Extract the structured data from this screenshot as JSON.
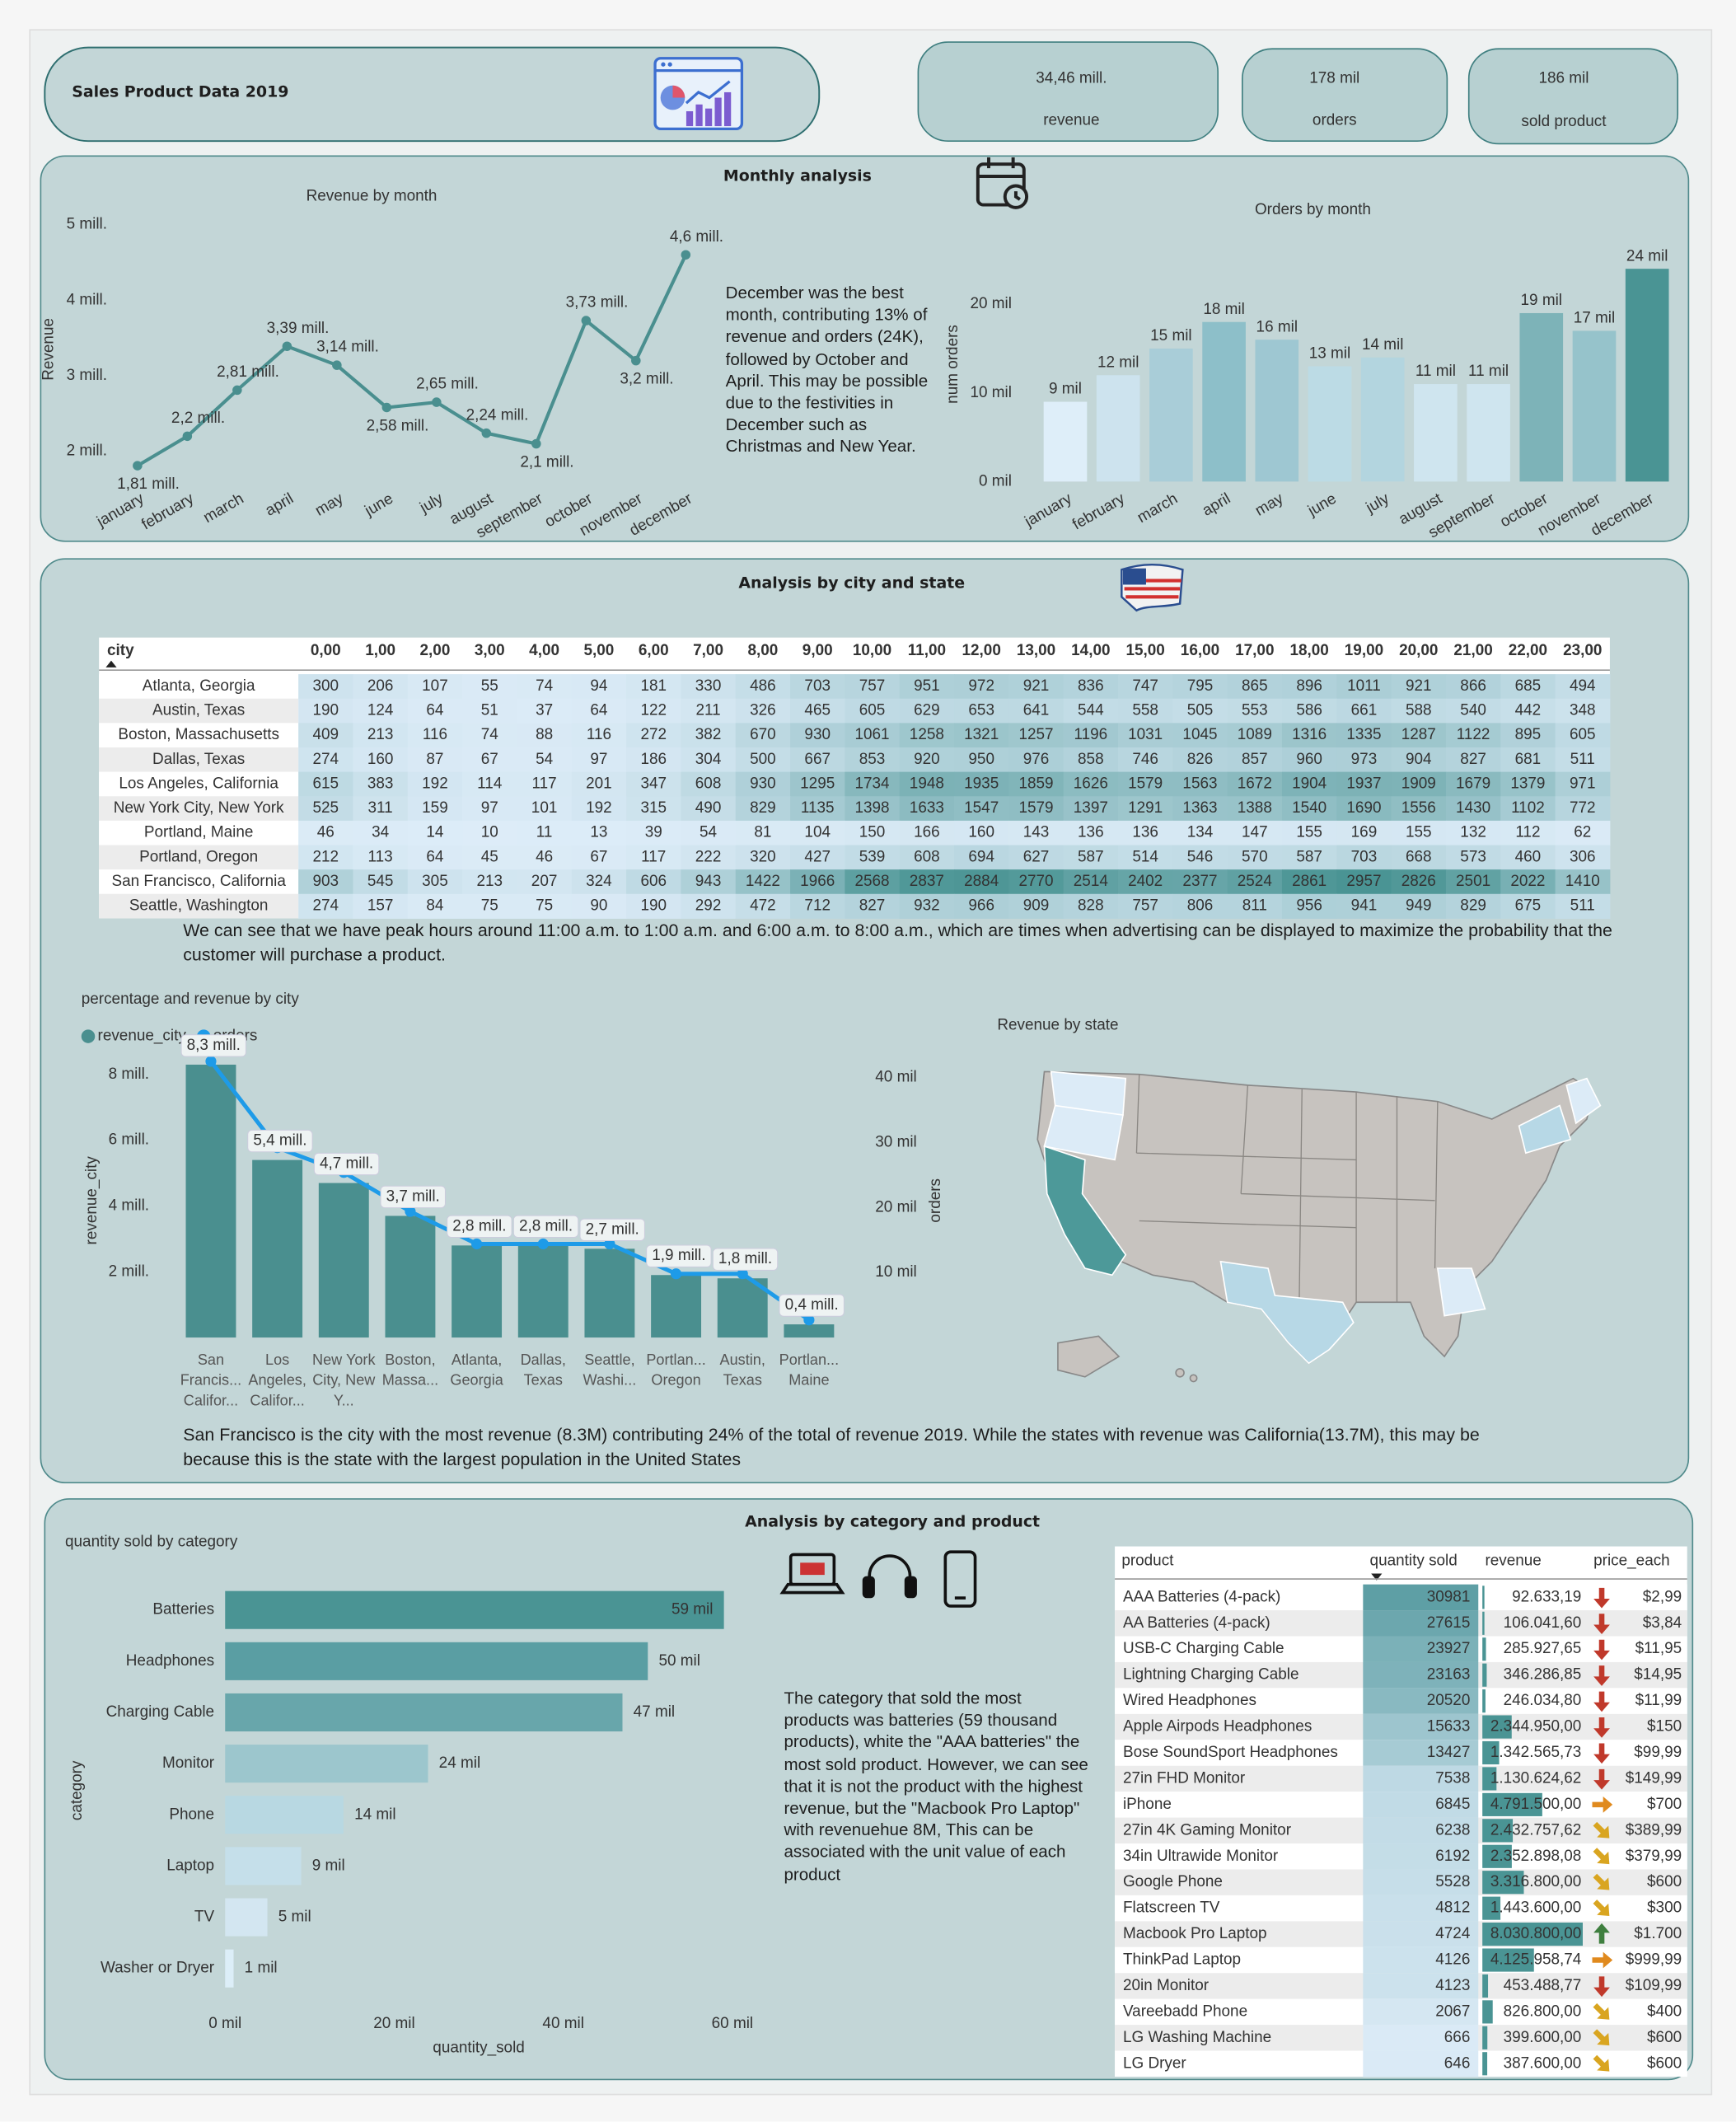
{
  "header": {
    "title": "Sales Product Data 2019"
  },
  "kpis": [
    {
      "value": "34,46 mill.",
      "label": "revenue"
    },
    {
      "value": "178 mil",
      "label": "orders"
    },
    {
      "value": "186 mil",
      "label": "sold product"
    }
  ],
  "sections": [
    "Monthly analysis",
    "Analysis by city and state",
    "Analysis by category and product"
  ],
  "notes": {
    "monthly": "December was the best month, contributing 13% of revenue and orders (24K), followed by October and April. This may be possible due to the festivities in December such as Christmas and New Year.",
    "hours": "We can see that we have peak hours around 11:00 a.m. to 1:00 a.m. and 6:00 a.m. to 8:00 a.m., which are times when advertising can be displayed to maximize the probability that the customer will purchase a product.",
    "city": "San Francisco is the city with the most revenue (8.3M) contributing 24% of the total of revenue 2019.  While the states with revenue was California(13.7M), this may be because this is the state with the largest population in the United States",
    "category": "The category that sold the most products was batteries (59 thousand products), white the \"AAA batteries\" the most sold product. However, we can see that it is not the product with the highest revenue, but the \"Macbook Pro Laptop\" with revenuehue 8M, This can be associated with the unit value of each product"
  },
  "chart_data": [
    {
      "type": "line",
      "title": "Revenue by month",
      "y_label": "Revenue",
      "color": "#4a8f8f",
      "categories": [
        "january",
        "february",
        "march",
        "april",
        "may",
        "june",
        "july",
        "august",
        "september",
        "october",
        "november",
        "december"
      ],
      "values": [
        1.81,
        2.2,
        2.81,
        3.39,
        3.14,
        2.58,
        2.65,
        2.24,
        2.1,
        3.73,
        3.2,
        4.6
      ],
      "value_labels": [
        "1,81 mill.",
        "2,2 mill.",
        "2,81 mill.",
        "3,39 mill.",
        "3,14 mill.",
        "2,58 mill.",
        "2,65 mill.",
        "2,24 mill.",
        "2,1 mill.",
        "3,73 mill.",
        "3,2 mill.",
        "4,6 mill."
      ],
      "ylim": [
        1.6,
        5.1
      ],
      "yticks": [
        {
          "value": 2,
          "label": "2 mill."
        },
        {
          "value": 3,
          "label": "3 mill."
        },
        {
          "value": 4,
          "label": "4 mill."
        },
        {
          "value": 5,
          "label": "5 mill."
        }
      ],
      "grid": false
    },
    {
      "type": "bar",
      "title": "Orders by month",
      "y_label": "num orders",
      "categories": [
        "january",
        "february",
        "march",
        "april",
        "may",
        "june",
        "july",
        "august",
        "september",
        "october",
        "november",
        "december"
      ],
      "values": [
        9,
        12,
        15,
        18,
        16,
        13,
        14,
        11,
        11,
        19,
        17,
        24
      ],
      "value_labels": [
        "9 mil",
        "12 mil",
        "15 mil",
        "18 mil",
        "16 mil",
        "13 mil",
        "14 mil",
        "11 mil",
        "11 mil",
        "19 mil",
        "17 mil",
        "24 mil"
      ],
      "colors": [
        "#deeef9",
        "#cde3ee",
        "#a9cdd8",
        "#8dbfc9",
        "#9ec7d2",
        "#bcdbe5",
        "#b3d5df",
        "#cfe5ef",
        "#cfe5ef",
        "#7db3b8",
        "#96c3cb",
        "#4a9494"
      ],
      "ylim": [
        0,
        28
      ],
      "yticks": [
        {
          "value": 0,
          "label": "0 mil"
        },
        {
          "value": 10,
          "label": "10 mil"
        },
        {
          "value": 20,
          "label": "20 mil"
        }
      ],
      "grid": false
    },
    {
      "type": "bar-line",
      "title": "percentage and revenue by city",
      "y_label": "revenue_city",
      "y2_label": "orders",
      "categories": [
        "San Francis... Califor...",
        "Los Angeles, Califor...",
        "New York City, New Y...",
        "Boston, Massa...",
        "Atlanta, Georgia",
        "Dallas, Texas",
        "Seattle, Washi...",
        "Portlan... Oregon",
        "Austin, Texas",
        "Portlan... Maine"
      ],
      "series": [
        {
          "name": "revenue_city",
          "color": "#4a8f8f",
          "values": [
            8.3,
            5.4,
            4.7,
            3.7,
            2.8,
            2.8,
            2.7,
            1.9,
            1.8,
            0.4
          ],
          "value_labels": [
            "8,3 mill.",
            "5,4 mill.",
            "4,7 mill.",
            "3,7 mill.",
            "2,8 mill.",
            "2,8 mill.",
            "2,7 mill.",
            "1,9 mill.",
            "1,8 mill.",
            "0,4 mill."
          ]
        },
        {
          "name": "orders",
          "color": "#1e9be8",
          "axis": "y2",
          "values": [
            42.5,
            29.2,
            25.4,
            19.4,
            14.4,
            14.4,
            14.4,
            9.8,
            9.8,
            2.7
          ]
        }
      ],
      "ylim": [
        0,
        8.5
      ],
      "yticks": [
        {
          "value": 2,
          "label": "2 mill."
        },
        {
          "value": 4,
          "label": "4 mill."
        },
        {
          "value": 6,
          "label": "6 mill."
        },
        {
          "value": 8,
          "label": "8 mill."
        }
      ],
      "y2lim": [
        0,
        43
      ],
      "y2ticks": [
        {
          "value": 10,
          "label": "10 mil"
        },
        {
          "value": 20,
          "label": "20 mil"
        },
        {
          "value": 30,
          "label": "30 mil"
        },
        {
          "value": 40,
          "label": "40 mil"
        }
      ],
      "legend": "top-left",
      "grid": false
    },
    {
      "type": "hbar",
      "title": "quantity sold by category",
      "x_label": "quantity_sold",
      "y_label": "category",
      "categories": [
        "Batteries",
        "Headphones",
        "Charging Cable",
        "Monitor",
        "Phone",
        "Laptop",
        "TV",
        "Washer or Dryer"
      ],
      "values": [
        59,
        50,
        47,
        24,
        14,
        9,
        5,
        1
      ],
      "value_labels": [
        "59 mil",
        "50 mil",
        "47 mil",
        "24 mil",
        "14 mil",
        "9 mil",
        "5 mil",
        "1 mil"
      ],
      "colors": [
        "#4a9494",
        "#5a9ea3",
        "#68a6ab",
        "#9cc6cd",
        "#b8d8e2",
        "#c5dfea",
        "#d3e6f1",
        "#dceef8"
      ],
      "xlim": [
        0,
        60
      ],
      "xticks": [
        {
          "value": 0,
          "label": "0 mil"
        },
        {
          "value": 20,
          "label": "20 mil"
        },
        {
          "value": 40,
          "label": "40 mil"
        },
        {
          "value": 60,
          "label": "60 mil"
        }
      ],
      "grid": false
    }
  ],
  "map_title": "Revenue by state",
  "hour_table": {
    "header": "city",
    "color_scale": [
      "#ddecf8",
      "#4a9494"
    ],
    "hours": [
      "0,00",
      "1,00",
      "2,00",
      "3,00",
      "4,00",
      "5,00",
      "6,00",
      "7,00",
      "8,00",
      "9,00",
      "10,00",
      "11,00",
      "12,00",
      "13,00",
      "14,00",
      "15,00",
      "16,00",
      "17,00",
      "18,00",
      "19,00",
      "20,00",
      "21,00",
      "22,00",
      "23,00"
    ],
    "cities": [
      "Atlanta, Georgia",
      "Austin, Texas",
      "Boston, Massachusetts",
      "Dallas, Texas",
      "Los Angeles, California",
      "New York City, New York",
      "Portland, Maine",
      "Portland, Oregon",
      "San Francisco, California",
      "Seattle, Washington"
    ],
    "values": [
      [
        300,
        206,
        107,
        55,
        74,
        94,
        181,
        330,
        486,
        703,
        757,
        951,
        972,
        921,
        836,
        747,
        795,
        865,
        896,
        1011,
        921,
        866,
        685,
        494
      ],
      [
        190,
        124,
        64,
        51,
        37,
        64,
        122,
        211,
        326,
        465,
        605,
        629,
        653,
        641,
        544,
        558,
        505,
        553,
        586,
        661,
        588,
        540,
        442,
        348
      ],
      [
        409,
        213,
        116,
        74,
        88,
        116,
        272,
        382,
        670,
        930,
        1061,
        1258,
        1321,
        1257,
        1196,
        1031,
        1045,
        1089,
        1316,
        1335,
        1287,
        1122,
        895,
        605
      ],
      [
        274,
        160,
        87,
        67,
        54,
        97,
        186,
        304,
        500,
        667,
        853,
        920,
        950,
        976,
        858,
        746,
        826,
        857,
        960,
        973,
        904,
        827,
        681,
        511
      ],
      [
        615,
        383,
        192,
        114,
        117,
        201,
        347,
        608,
        930,
        1295,
        1734,
        1948,
        1935,
        1859,
        1626,
        1579,
        1563,
        1672,
        1904,
        1937,
        1909,
        1679,
        1379,
        971
      ],
      [
        525,
        311,
        159,
        97,
        101,
        192,
        315,
        490,
        829,
        1135,
        1398,
        1633,
        1547,
        1579,
        1397,
        1291,
        1363,
        1388,
        1540,
        1690,
        1556,
        1430,
        1102,
        772
      ],
      [
        46,
        34,
        14,
        10,
        11,
        13,
        39,
        54,
        81,
        104,
        150,
        166,
        160,
        143,
        136,
        136,
        134,
        147,
        155,
        169,
        155,
        132,
        112,
        62
      ],
      [
        212,
        113,
        64,
        45,
        46,
        67,
        117,
        222,
        320,
        427,
        539,
        608,
        694,
        627,
        587,
        514,
        546,
        570,
        587,
        703,
        668,
        573,
        460,
        306
      ],
      [
        903,
        545,
        305,
        213,
        207,
        324,
        606,
        943,
        1422,
        1966,
        2568,
        2837,
        2884,
        2770,
        2514,
        2402,
        2377,
        2524,
        2861,
        2957,
        2826,
        2501,
        2022,
        1410
      ],
      [
        274,
        157,
        84,
        75,
        75,
        90,
        190,
        292,
        472,
        712,
        827,
        932,
        966,
        909,
        828,
        757,
        806,
        811,
        956,
        941,
        949,
        829,
        675,
        511
      ]
    ]
  },
  "product_table": {
    "columns": [
      "product",
      "quantity sold",
      "revenue",
      "price_each"
    ],
    "color_scale": [
      "#ddecf8",
      "#5e9fa5"
    ],
    "bar_color": "#4a9494",
    "trend_colors": {
      "down": "#c0392b",
      "down-right": "#d9a520",
      "right": "#e08a1e",
      "up": "#3f7f3f"
    },
    "products": [
      "AAA Batteries (4-pack)",
      "AA Batteries (4-pack)",
      "USB-C Charging Cable",
      "Lightning Charging Cable",
      "Wired Headphones",
      "Apple Airpods Headphones",
      "Bose SoundSport Headphones",
      "27in FHD Monitor",
      "iPhone",
      "27in 4K Gaming Monitor",
      "34in Ultrawide Monitor",
      "Google Phone",
      "Flatscreen TV",
      "Macbook Pro Laptop",
      "ThinkPad Laptop",
      "20in Monitor",
      "Vareebadd Phone",
      "LG Washing Machine",
      "LG Dryer"
    ],
    "quantity_sold": [
      30981,
      27615,
      23927,
      23163,
      20520,
      15633,
      13427,
      7538,
      6845,
      6238,
      6192,
      5528,
      4812,
      4724,
      4126,
      4123,
      2067,
      666,
      646
    ],
    "revenue": [
      92633.19,
      106041.6,
      285927.65,
      346286.85,
      246034.8,
      2344950.0,
      1342565.73,
      1130624.62,
      4791500.0,
      2432757.62,
      2352898.08,
      3316800.0,
      1443600.0,
      8030800.0,
      4125958.74,
      453488.77,
      826800.0,
      399600.0,
      387600.0
    ],
    "revenue_labels": [
      "92.633,19",
      "106.041,60",
      "285.927,65",
      "346.286,85",
      "246.034,80",
      "2.344.950,00",
      "1.342.565,73",
      "1.130.624,62",
      "4.791.500,00",
      "2.432.757,62",
      "2.352.898,08",
      "3.316.800,00",
      "1.443.600,00",
      "8.030.800,00",
      "4.125.958,74",
      "453.488,77",
      "826.800,00",
      "399.600,00",
      "387.600,00"
    ],
    "price_each": [
      "$2,99",
      "$3,84",
      "$11,95",
      "$14,95",
      "$11,99",
      "$150",
      "$99,99",
      "$149,99",
      "$700",
      "$389,99",
      "$379,99",
      "$600",
      "$300",
      "$1.700",
      "$999,99",
      "$109,99",
      "$400",
      "$600",
      "$600"
    ],
    "trend": [
      "down",
      "down",
      "down",
      "down",
      "down",
      "down",
      "down",
      "down",
      "right",
      "down-right",
      "down-right",
      "down-right",
      "down-right",
      "up",
      "right",
      "down",
      "down-right",
      "down-right",
      "down-right"
    ]
  }
}
